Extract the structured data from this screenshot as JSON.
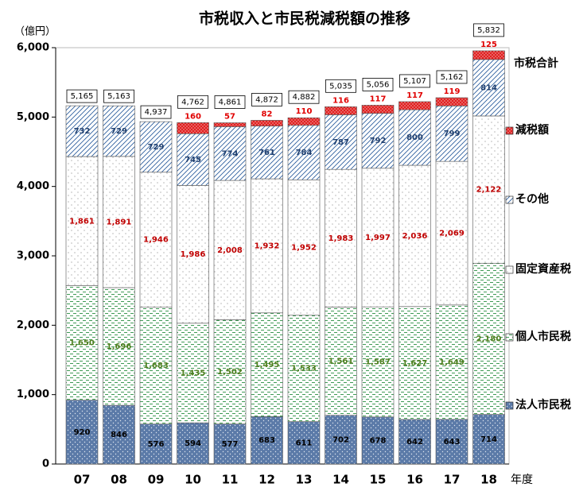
{
  "chart_data": {
    "type": "stacked_bar",
    "title": "市税収入と市民税減税額の推移",
    "y_label": "（億円）",
    "x_label": "年度",
    "categories": [
      "07",
      "08",
      "09",
      "10",
      "11",
      "12",
      "13",
      "14",
      "15",
      "16",
      "17",
      "18"
    ],
    "ylim": [
      0,
      6000
    ],
    "yticks": [
      0,
      {
        "value": 1000,
        "label": "1,000"
      },
      {
        "value": 2000,
        "label": "2,000"
      },
      {
        "value": 3000,
        "label": "3,000"
      },
      {
        "value": 4000,
        "label": "4,000"
      },
      {
        "value": 5000,
        "label": "5,000"
      },
      {
        "value": 6000,
        "label": "6,000"
      }
    ],
    "series": [
      {
        "name": "法人市民税",
        "color": "#5b7aa8",
        "label_color": "#000000",
        "values": [
          920,
          846,
          576,
          594,
          577,
          683,
          611,
          702,
          678,
          642,
          643,
          714
        ],
        "value_labels": [
          "920",
          "846",
          "576",
          "594",
          "577",
          "683",
          "611",
          "702",
          "678",
          "642",
          "643",
          "714"
        ]
      },
      {
        "name": "個人市民税",
        "color": "#3f9a55",
        "label_color": "#4f7f1f",
        "values": [
          1650,
          1696,
          1683,
          1435,
          1502,
          1495,
          1533,
          1561,
          1587,
          1627,
          1649,
          2180
        ],
        "value_labels": [
          "1,650",
          "1,696",
          "1,683",
          "1,435",
          "1,502",
          "1,495",
          "1,533",
          "1,561",
          "1,587",
          "1,627",
          "1,649",
          "2,180"
        ]
      },
      {
        "name": "固定資産税",
        "color": "#8a8a8a",
        "label_color": "#c00000",
        "values": [
          1861,
          1891,
          1946,
          1986,
          2008,
          1932,
          1952,
          1983,
          1997,
          2036,
          2069,
          2122
        ],
        "value_labels": [
          "1,861",
          "1,891",
          "1,946",
          "1,986",
          "2,008",
          "1,932",
          "1,952",
          "1,983",
          "1,997",
          "2,036",
          "2,069",
          "2,122"
        ]
      },
      {
        "name": "その他",
        "color": "#2f5f9f",
        "label_color": "#1f3f6f",
        "values": [
          732,
          729,
          729,
          745,
          774,
          761,
          784,
          787,
          792,
          800,
          799,
          814
        ],
        "value_labels": [
          "732",
          "729",
          "729",
          "745",
          "774",
          "761",
          "784",
          "787",
          "792",
          "800",
          "799",
          "814"
        ]
      },
      {
        "name": "減税額",
        "color": "#e02020",
        "label_color": "#e00000",
        "values": [
          null,
          null,
          null,
          160,
          57,
          82,
          110,
          116,
          117,
          117,
          119,
          125
        ],
        "value_labels": [
          null,
          null,
          null,
          "160",
          "57",
          "82",
          "110",
          "116",
          "117",
          "117",
          "119",
          "125"
        ]
      }
    ],
    "totals": {
      "name": "市税合計",
      "values": [
        5165,
        5163,
        4937,
        4762,
        4861,
        4872,
        4882,
        5035,
        5056,
        5107,
        5162,
        5832
      ],
      "value_labels": [
        "5,165",
        "5,163",
        "4,937",
        "4,762",
        "4,861",
        "4,872",
        "4,882",
        "5,035",
        "5,056",
        "5,107",
        "5,162",
        "5,832"
      ]
    }
  }
}
